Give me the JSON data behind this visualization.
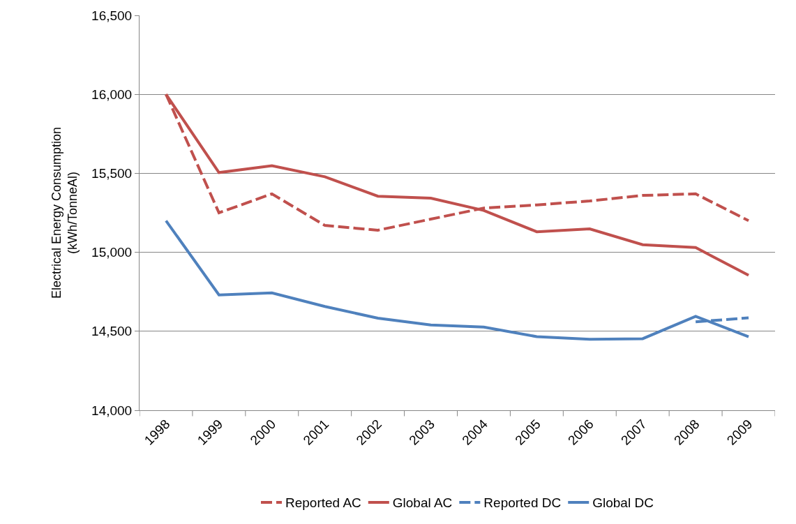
{
  "chart_data": {
    "type": "line",
    "ylabel": "Electrical Energy Consumption\n(kWh/TonneAl)",
    "categories": [
      "1998",
      "1999",
      "2000",
      "2001",
      "2002",
      "2003",
      "2004",
      "2005",
      "2006",
      "2007",
      "2008",
      "2009"
    ],
    "series": [
      {
        "name": "Reported AC",
        "color": "#c0504d",
        "line_style": "dashed",
        "values": [
          16000,
          15250,
          15370,
          15170,
          15140,
          15210,
          15280,
          15300,
          15325,
          15360,
          15370,
          15200
        ]
      },
      {
        "name": "Global AC",
        "color": "#c0504d",
        "line_style": "solid",
        "values": [
          16000,
          15505,
          15548,
          15478,
          15355,
          15343,
          15265,
          15130,
          15148,
          15048,
          15030,
          14855
        ]
      },
      {
        "name": "Reported DC",
        "color": "#4f81bd",
        "line_style": "dashed",
        "values": [
          null,
          null,
          null,
          null,
          null,
          null,
          null,
          null,
          null,
          null,
          14560,
          14585
        ]
      },
      {
        "name": "Global DC",
        "color": "#4f81bd",
        "line_style": "solid",
        "values": [
          15200,
          14730,
          14743,
          14657,
          14583,
          14540,
          14527,
          14466,
          14449,
          14453,
          14595,
          14465
        ]
      }
    ],
    "ylim": [
      14000,
      16500
    ],
    "yticks": [
      {
        "value": 14000,
        "label": "14,000"
      },
      {
        "value": 14500,
        "label": "14,500"
      },
      {
        "value": 15000,
        "label": "15,000"
      },
      {
        "value": 15500,
        "label": "15,500"
      },
      {
        "value": 16000,
        "label": "16,000"
      },
      {
        "value": 16500,
        "label": "16,500"
      }
    ],
    "grid": "y",
    "legend": "bottom",
    "marker": "none"
  }
}
